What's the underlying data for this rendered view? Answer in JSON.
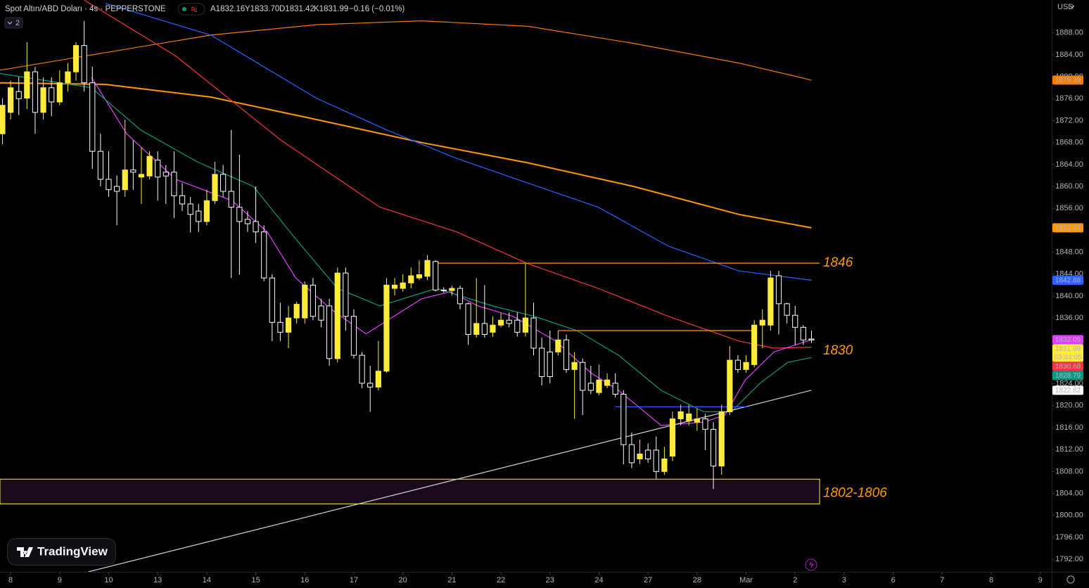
{
  "chart_data": {
    "type": "candlestick",
    "title": "Spot Altın/ABD Doları · 4s · PEPPERSTONE",
    "legend_values": [
      "A1832.16",
      "Y1833.70",
      "D1831.42",
      "K1831.99"
    ],
    "change": "−0.16 (−0.01%)",
    "indicator_count": 2,
    "currency": "USD",
    "watermark": "TradingView",
    "up_color": "#ffeb3b",
    "down_color": "#ffffff",
    "grid": false,
    "xlim": [
      -1.3,
      127.4
    ],
    "ylim": [
      1789.7,
      1894.0
    ],
    "xticks": [
      {
        "value": 0,
        "label": "8"
      },
      {
        "value": 6,
        "label": "9"
      },
      {
        "value": 12,
        "label": "10"
      },
      {
        "value": 18,
        "label": "13"
      },
      {
        "value": 24,
        "label": "14"
      },
      {
        "value": 30,
        "label": "15"
      },
      {
        "value": 36,
        "label": "16"
      },
      {
        "value": 42,
        "label": "17"
      },
      {
        "value": 48,
        "label": "20"
      },
      {
        "value": 54,
        "label": "21"
      },
      {
        "value": 60,
        "label": "22"
      },
      {
        "value": 66,
        "label": "23"
      },
      {
        "value": 72,
        "label": "24"
      },
      {
        "value": 78,
        "label": "27"
      },
      {
        "value": 84,
        "label": "28"
      },
      {
        "value": 90,
        "label": "Mar"
      },
      {
        "value": 96,
        "label": "2"
      },
      {
        "value": 102,
        "label": "3"
      },
      {
        "value": 108,
        "label": "6"
      },
      {
        "value": 114,
        "label": "7"
      },
      {
        "value": 120,
        "label": "8"
      },
      {
        "value": 126,
        "label": "9"
      }
    ],
    "yticks": [
      {
        "value": 1792,
        "label": "1792.00"
      },
      {
        "value": 1796,
        "label": "1796.00"
      },
      {
        "value": 1800,
        "label": "1800.00"
      },
      {
        "value": 1804,
        "label": "1804.00"
      },
      {
        "value": 1808,
        "label": "1808.00"
      },
      {
        "value": 1812,
        "label": "1812.00"
      },
      {
        "value": 1816,
        "label": "1816.00"
      },
      {
        "value": 1820,
        "label": "1820.00"
      },
      {
        "value": 1824,
        "label": "1824.00"
      },
      {
        "value": 1828,
        "label": "1828.00"
      },
      {
        "value": 1832,
        "label": "1832.00"
      },
      {
        "value": 1836,
        "label": "1836.00"
      },
      {
        "value": 1840,
        "label": "1840.00"
      },
      {
        "value": 1844,
        "label": "1844.00"
      },
      {
        "value": 1848,
        "label": "1848.00"
      },
      {
        "value": 1852,
        "label": "1852.00"
      },
      {
        "value": 1856,
        "label": "1856.00"
      },
      {
        "value": 1860,
        "label": "1860.00"
      },
      {
        "value": 1864,
        "label": "1864.00"
      },
      {
        "value": 1868,
        "label": "1868.00"
      },
      {
        "value": 1872,
        "label": "1872.00"
      },
      {
        "value": 1876,
        "label": "1876.00"
      },
      {
        "value": 1880,
        "label": "1880.00"
      },
      {
        "value": 1884,
        "label": "1884.00"
      },
      {
        "value": 1888,
        "label": "1888.00"
      }
    ],
    "candles": {
      "x": [
        -1,
        0,
        1,
        2,
        3,
        4,
        5,
        6,
        7,
        8,
        9,
        10,
        11,
        12,
        13,
        14,
        15,
        16,
        17,
        18,
        19,
        20,
        21,
        22,
        23,
        24,
        25,
        26,
        27,
        28,
        29,
        30,
        31,
        32,
        33,
        34,
        35,
        36,
        37,
        38,
        39,
        40,
        41,
        42,
        43,
        44,
        45,
        46,
        47,
        48,
        49,
        50,
        51,
        52,
        53,
        54,
        55,
        56,
        57,
        58,
        59,
        60,
        61,
        62,
        63,
        64,
        65,
        66,
        67,
        68,
        69,
        70,
        71,
        72,
        73,
        74,
        75,
        76,
        77,
        78,
        79,
        80,
        81,
        82,
        83,
        84,
        85,
        86,
        87,
        88,
        89,
        90,
        91,
        92,
        93,
        94,
        95,
        96,
        97,
        98
      ],
      "open": [
        1869.6,
        1873.5,
        1877.3,
        1876.1,
        1880.9,
        1873.5,
        1878.0,
        1875.4,
        1878.9,
        1880.9,
        1885.7,
        1878.9,
        1866.4,
        1861.3,
        1860.0,
        1859.4,
        1863.0,
        1861.7,
        1861.9,
        1864.8,
        1862.6,
        1862.6,
        1858.3,
        1856.8,
        1855.5,
        1853.6,
        1857.4,
        1862.2,
        1859.1,
        1856.2,
        1854.0,
        1853.6,
        1851.7,
        1843.3,
        1835.2,
        1833.4,
        1836.0,
        1836.0,
        1842.0,
        1838.2,
        1838.2,
        1828.6,
        1844.2,
        1836.3,
        1829.2,
        1824.1,
        1823.4,
        1826.3,
        1841.4,
        1841.4,
        1842.4,
        1843.3,
        1843.6,
        1846.3,
        1841.1,
        1841.0,
        1841.4,
        1838.6,
        1833.0,
        1835.0,
        1833.4,
        1834.7,
        1835.6,
        1835.6,
        1833.4,
        1836.0,
        1830.5,
        1829.8,
        1829.8,
        1832.0,
        1826.6,
        1827.9,
        1824.1,
        1822.4,
        1823.7,
        1824.1,
        1822.1,
        1812.9,
        1810.3,
        1811.9,
        1811.9,
        1808.0,
        1810.8,
        1817.6,
        1817.2,
        1817.0,
        1817.6,
        1815.7,
        1809.0,
        1818.9,
        1828.3,
        1826.6,
        1827.5,
        1834.7,
        1834.7,
        1843.7,
        1838.6,
        1836.5,
        1834.3,
        1832.16
      ],
      "high": [
        1876.1,
        1879.3,
        1880.0,
        1886.3,
        1881.8,
        1879.9,
        1879.9,
        1881.2,
        1882.5,
        1886.3,
        1890.2,
        1881.8,
        1869.6,
        1866.4,
        1862.0,
        1872.2,
        1868.4,
        1867.1,
        1866.4,
        1866.4,
        1863.9,
        1866.4,
        1860.6,
        1858.1,
        1856.8,
        1859.4,
        1864.5,
        1863.9,
        1870.3,
        1865.8,
        1855.5,
        1860.0,
        1852.9,
        1844.0,
        1838.8,
        1838.2,
        1839.0,
        1842.7,
        1843.3,
        1839.5,
        1839.5,
        1845.2,
        1845.2,
        1837.6,
        1829.8,
        1827.3,
        1831.8,
        1843.3,
        1843.3,
        1844.0,
        1845.2,
        1846.5,
        1847.5,
        1846.5,
        1841.6,
        1841.9,
        1841.9,
        1838.8,
        1843.3,
        1842.0,
        1836.3,
        1836.9,
        1837.0,
        1837.0,
        1845.9,
        1838.8,
        1832.4,
        1833.7,
        1833.7,
        1833.0,
        1829.8,
        1828.6,
        1827.3,
        1827.5,
        1825.9,
        1825.9,
        1822.8,
        1815.1,
        1813.8,
        1813.1,
        1814.4,
        1812.5,
        1818.9,
        1820.2,
        1820.2,
        1819.5,
        1818.5,
        1817.0,
        1820.2,
        1830.9,
        1829.2,
        1829.2,
        1835.6,
        1837.6,
        1844.6,
        1844.6,
        1838.8,
        1838.2,
        1834.7,
        1833.7
      ],
      "low": [
        1867.7,
        1872.2,
        1873.0,
        1874.1,
        1869.6,
        1872.2,
        1872.8,
        1874.8,
        1877.3,
        1879.3,
        1877.3,
        1863.2,
        1860.0,
        1858.1,
        1852.9,
        1858.1,
        1859.4,
        1856.8,
        1861.3,
        1857.4,
        1856.8,
        1854.2,
        1855.5,
        1851.6,
        1851.7,
        1852.9,
        1856.8,
        1858.1,
        1843.3,
        1843.9,
        1851.7,
        1849.7,
        1842.7,
        1831.8,
        1831.8,
        1830.5,
        1835.0,
        1835.0,
        1835.6,
        1834.3,
        1827.3,
        1827.9,
        1833.7,
        1828.6,
        1823.2,
        1818.9,
        1822.8,
        1826.0,
        1840.1,
        1840.8,
        1841.4,
        1842.9,
        1842.9,
        1840.8,
        1840.6,
        1840.1,
        1837.6,
        1831.1,
        1832.4,
        1832.4,
        1832.6,
        1834.3,
        1834.3,
        1832.6,
        1832.6,
        1829.2,
        1823.7,
        1824.1,
        1829.2,
        1826.0,
        1817.6,
        1818.3,
        1822.1,
        1821.9,
        1823.2,
        1821.5,
        1809.3,
        1808.6,
        1809.3,
        1809.6,
        1806.7,
        1807.4,
        1809.9,
        1816.4,
        1816.4,
        1815.4,
        1811.9,
        1804.8,
        1807.4,
        1818.3,
        1826.0,
        1826.0,
        1827.0,
        1830.5,
        1833.7,
        1833.0,
        1835.0,
        1831.1,
        1831.1,
        1831.42
      ],
      "close": [
        1874.8,
        1878.0,
        1876.0,
        1880.9,
        1873.5,
        1878.0,
        1875.4,
        1878.9,
        1880.9,
        1885.7,
        1878.9,
        1866.4,
        1861.3,
        1859.4,
        1859.1,
        1863.0,
        1862.6,
        1862.2,
        1865.5,
        1861.7,
        1861.9,
        1858.3,
        1856.8,
        1854.9,
        1853.6,
        1857.4,
        1862.2,
        1859.1,
        1856.2,
        1853.6,
        1853.2,
        1851.7,
        1843.3,
        1835.2,
        1833.4,
        1836.0,
        1838.5,
        1842.0,
        1836.3,
        1835.6,
        1828.6,
        1844.2,
        1836.3,
        1829.2,
        1824.1,
        1823.4,
        1826.3,
        1842.0,
        1842.0,
        1842.4,
        1843.7,
        1843.9,
        1846.5,
        1841.1,
        1841.0,
        1841.4,
        1838.6,
        1833.0,
        1835.0,
        1833.0,
        1834.7,
        1835.6,
        1835.0,
        1833.4,
        1836.0,
        1830.5,
        1825.3,
        1825.3,
        1832.0,
        1826.6,
        1827.9,
        1822.8,
        1822.8,
        1824.7,
        1824.7,
        1822.1,
        1812.9,
        1809.6,
        1811.2,
        1810.3,
        1808.0,
        1810.3,
        1817.6,
        1818.9,
        1818.5,
        1817.6,
        1815.7,
        1809.0,
        1818.9,
        1828.3,
        1826.6,
        1827.9,
        1834.7,
        1835.6,
        1843.3,
        1838.6,
        1836.5,
        1834.3,
        1832.0,
        1831.99
      ]
    },
    "lines": [
      {
        "color": "#f57c00",
        "width": 1.2,
        "x": [
          -1.3,
          11.6,
          24.5,
          37.4,
          50.3,
          63.3,
          76.2,
          89.1,
          98
        ],
        "values": [
          1881.2,
          1884.4,
          1887.6,
          1889.5,
          1890.2,
          1889.2,
          1886.1,
          1882.5,
          1879.39
        ]
      },
      {
        "color": "#ff9800",
        "width": 2,
        "x": [
          -1.3,
          11.6,
          24.5,
          37.4,
          50.3,
          63.3,
          76.2,
          89.1,
          98
        ],
        "values": [
          1878.9,
          1878.6,
          1876.3,
          1872.2,
          1868.0,
          1864.3,
          1860.0,
          1854.9,
          1852.45
        ]
      },
      {
        "color": "#2962ff",
        "width": 1.2,
        "x": [
          11.6,
          24.5,
          37.4,
          46.0,
          54.6,
          63.3,
          71.9,
          80.5,
          89.1,
          98
        ],
        "values": [
          1893.4,
          1887.6,
          1876.1,
          1870.3,
          1865.1,
          1860.6,
          1856.2,
          1849.1,
          1844.6,
          1842.88
        ]
      },
      {
        "color": "#f23645",
        "width": 1.2,
        "x": [
          9.0,
          20.2,
          33.1,
          45.2,
          54.6,
          63.3,
          71.9,
          80.5,
          89.1,
          93.4,
          98
        ],
        "values": [
          1894.0,
          1883.8,
          1868.4,
          1856.2,
          1851.7,
          1845.9,
          1841.4,
          1836.3,
          1831.8,
          1830.5,
          1830.68
        ]
      },
      {
        "color": "#e040fb",
        "width": 1.2,
        "x": [
          9.9,
          14.2,
          20.2,
          27.1,
          31.4,
          34.9,
          39.2,
          43.5,
          46.9,
          50.3,
          53.8,
          57.2,
          61.5,
          66.7,
          71.0,
          74.4,
          79.6,
          84.8,
          87.4,
          89.9,
          93.4,
          98
        ],
        "values": [
          1879.9,
          1869.6,
          1861.3,
          1857.4,
          1851.7,
          1843.3,
          1837.6,
          1833.1,
          1836.3,
          1839.5,
          1840.8,
          1838.2,
          1836.3,
          1831.8,
          1826.0,
          1822.8,
          1816.4,
          1817.0,
          1818.3,
          1824.7,
          1829.8,
          1832.05
        ]
      },
      {
        "color": "#089981",
        "width": 1.2,
        "x": [
          -1.3,
          9.9,
          15.9,
          22.8,
          29.7,
          34.9,
          40.0,
          45.2,
          52.1,
          59.0,
          64.1,
          69.3,
          74.4,
          79.6,
          84.8,
          88.2,
          91.7,
          95.1,
          98
        ],
        "values": [
          1880.6,
          1878.0,
          1870.3,
          1864.5,
          1860.0,
          1850.4,
          1841.4,
          1838.2,
          1841.4,
          1838.2,
          1836.3,
          1833.7,
          1829.2,
          1822.8,
          1818.9,
          1818.9,
          1824.1,
          1827.9,
          1828.79
        ]
      },
      {
        "color": "#d1d4dc",
        "width": 1.2,
        "x": [
          9.5,
          98
        ],
        "values": [
          1789.7,
          1822.82
        ]
      }
    ],
    "hlines": [
      {
        "value": 1846,
        "color": "#ff9800",
        "x": [
          52.1,
          99
        ]
      },
      {
        "value": 1833.7,
        "color": "#ff9800",
        "x": [
          67,
          91.2
        ]
      },
      {
        "value": 1819.8,
        "color": "#2962ff",
        "x": [
          74,
          90.2
        ]
      }
    ],
    "zone": {
      "low": 1802.1,
      "high": 1806.6,
      "x": [
        -1.3,
        99
      ],
      "color": "#ffeb3b",
      "fill": "#1a0a1e"
    },
    "annotations": [
      {
        "text": "1846",
        "value": 1846
      },
      {
        "text": "1830",
        "value": 1830
      },
      {
        "text": "1802-1806",
        "value": 1804
      }
    ],
    "price_tags": [
      {
        "value": 1879.39,
        "color": "#f57c00",
        "text_color": "#000000"
      },
      {
        "value": 1852.45,
        "color": "#ff9800",
        "text_color": "#000000"
      },
      {
        "value": 1842.88,
        "color": "#2962ff",
        "text_color": "#ffffff"
      },
      {
        "value": 1832.05,
        "color": "#e040fb",
        "text_color": "#ffffff"
      },
      {
        "value": 1831.99,
        "color": "#ffeb3b",
        "text_color": "#000000",
        "countdown": "03:44:05"
      },
      {
        "value": 1830.68,
        "color": "#f23645",
        "text_color": "#ffffff"
      },
      {
        "value": 1828.79,
        "color": "#089981",
        "text_color": "#ffffff"
      },
      {
        "value": 1822.82,
        "color": "#ffffff",
        "text_color": "#000000"
      }
    ]
  }
}
